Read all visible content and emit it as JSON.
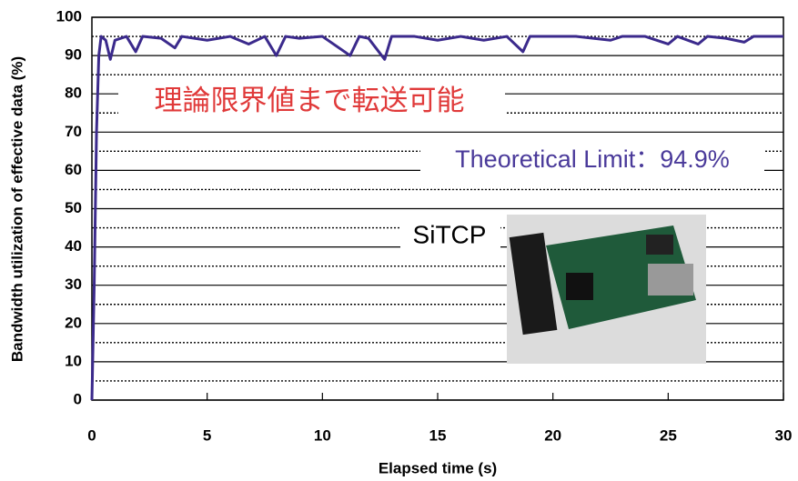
{
  "chart_data": {
    "type": "line",
    "x_label": "Elapsed time  (s)",
    "y_label": "Bandwidth utilization of effective data (%)",
    "annotations": [
      "理論限界値まで転送可能",
      "Theoretical Limit：94.9%",
      "SiTCP"
    ],
    "x": [
      0,
      0.1,
      0.2,
      0.3,
      0.4,
      0.6,
      0.8,
      1.0,
      1.5,
      1.9,
      2.2,
      3,
      3.6,
      3.9,
      5,
      6,
      6.8,
      7.5,
      8,
      8.4,
      9,
      10,
      11.2,
      11.6,
      12,
      12.7,
      13,
      14,
      15,
      16,
      17,
      18,
      18.7,
      19,
      20,
      21,
      22.5,
      23,
      24,
      25,
      25.4,
      26.3,
      26.7,
      27.5,
      28.3,
      28.7,
      30
    ],
    "series": [
      {
        "name": "SiTCP",
        "color": "#3b2a8c",
        "values": [
          0,
          30,
          70,
          90,
          95,
          94,
          89,
          94,
          95,
          91,
          95,
          94.5,
          92,
          95,
          94,
          95,
          93,
          95,
          90,
          95,
          94.5,
          95,
          90,
          95,
          94.5,
          89,
          95,
          95,
          94,
          95,
          94,
          95,
          91,
          95,
          95,
          95,
          94,
          95,
          95,
          93,
          95,
          93,
          95,
          94.5,
          93.5,
          95,
          95
        ]
      }
    ],
    "xlim": [
      0,
      30
    ],
    "xticks": [
      0,
      5,
      10,
      15,
      20,
      25,
      30
    ],
    "ylim": [
      0,
      100
    ],
    "yticks": [
      0,
      10,
      20,
      30,
      40,
      50,
      60,
      70,
      80,
      90,
      100
    ],
    "yminorticks": [
      5,
      15,
      25,
      35,
      45,
      55,
      65,
      75,
      85,
      95
    ],
    "grid": true
  }
}
